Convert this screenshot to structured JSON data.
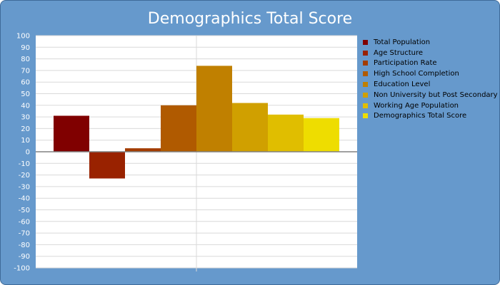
{
  "colors": {
    "background": "#6699cc",
    "plot_area": "#ffffff",
    "gridline": "#d9d9d9",
    "zero_line": "#808080",
    "text": "#ffffff"
  },
  "chart_data": {
    "type": "bar",
    "title": "Demographics Total Score",
    "xlabel": "",
    "ylabel": "",
    "ylim": [
      -100,
      100
    ],
    "ytick_step": 10,
    "grid": true,
    "legend_position": "right",
    "series": [
      {
        "name": "Total Population",
        "value": 31,
        "color": "#800000"
      },
      {
        "name": "Age Structure",
        "value": -23,
        "color": "#992200"
      },
      {
        "name": "Participation Rate",
        "value": 3,
        "color": "#a33c00"
      },
      {
        "name": "High School Completion",
        "value": 40,
        "color": "#b05a00"
      },
      {
        "name": "Education Level",
        "value": 74,
        "color": "#c08000"
      },
      {
        "name": "Non University but Post Secondary",
        "value": 42,
        "color": "#d0a000"
      },
      {
        "name": "Working Age Population",
        "value": 32,
        "color": "#e0be00"
      },
      {
        "name": "Demographics Total Score",
        "value": 29,
        "color": "#eedd00"
      }
    ]
  }
}
